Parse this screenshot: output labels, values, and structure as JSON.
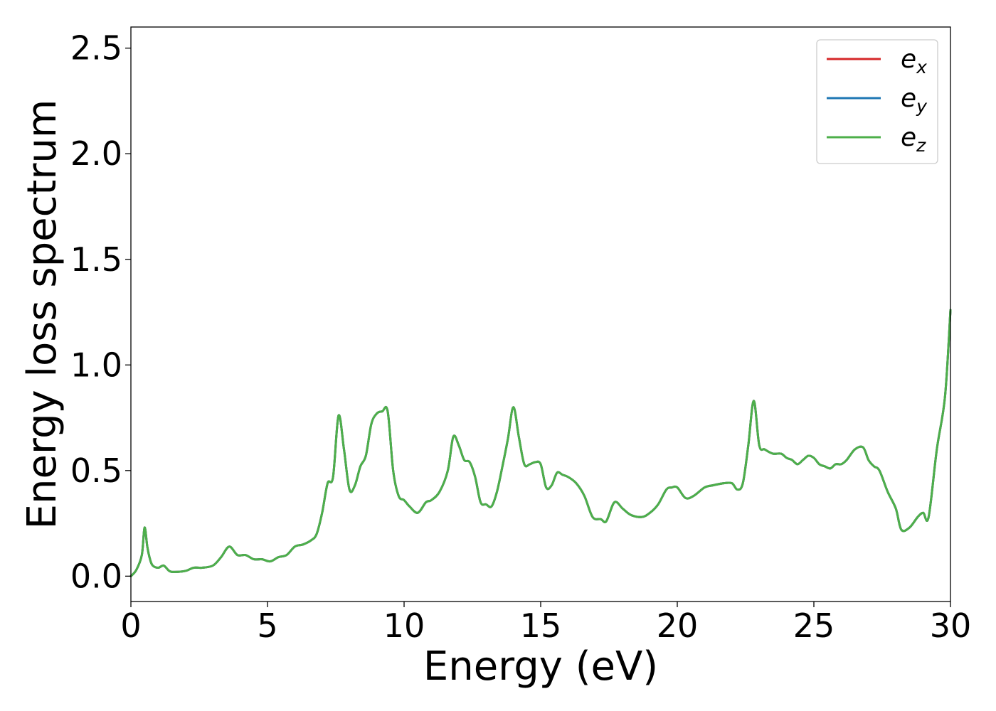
{
  "chart_data": {
    "type": "line",
    "title": "",
    "xlabel": "Energy (eV)",
    "ylabel": "Energy loss spectrum",
    "xlim": [
      0,
      30
    ],
    "ylim": [
      -0.12,
      2.6
    ],
    "xticks": [
      0,
      5,
      10,
      15,
      20,
      25,
      30
    ],
    "xtick_labels": [
      "0",
      "5",
      "10",
      "15",
      "20",
      "25",
      "30"
    ],
    "yticks": [
      0.0,
      0.5,
      1.0,
      1.5,
      2.0,
      2.5
    ],
    "ytick_labels": [
      "0.0",
      "0.5",
      "1.0",
      "1.5",
      "2.0",
      "2.5"
    ],
    "grid": false,
    "legend_position": "top-right",
    "legend": [
      {
        "symbol": "e",
        "subscript": "x",
        "color": "#d62728"
      },
      {
        "symbol": "e",
        "subscript": "y",
        "color": "#1f77b4"
      },
      {
        "symbol": "e",
        "subscript": "z",
        "color": "#4daf4a"
      }
    ],
    "series": [
      {
        "color": "#d62728",
        "x": [
          0,
          0.2,
          0.4,
          0.5,
          0.6,
          0.7,
          0.8,
          1.0,
          1.2,
          1.4,
          1.6,
          2.0,
          2.3,
          2.6,
          3.0,
          3.3,
          3.6,
          3.9,
          4.2,
          4.5,
          4.8,
          5.1,
          5.4,
          5.7,
          6.0,
          6.3,
          6.6,
          6.8,
          7.0,
          7.2,
          7.4,
          7.6,
          7.8,
          8.0,
          8.2,
          8.4,
          8.6,
          8.8,
          9.0,
          9.2,
          9.4,
          9.6,
          9.8,
          10.0,
          10.2,
          10.5,
          10.8,
          11.0,
          11.3,
          11.6,
          11.8,
          12.0,
          12.2,
          12.4,
          12.6,
          12.8,
          13.0,
          13.2,
          13.4,
          13.6,
          13.8,
          14.0,
          14.2,
          14.4,
          14.6,
          14.8,
          15.0,
          15.2,
          15.4,
          15.6,
          15.8,
          16.0,
          16.3,
          16.6,
          16.9,
          17.2,
          17.4,
          17.7,
          18.0,
          18.3,
          18.7,
          19.0,
          19.3,
          19.6,
          19.8,
          20.0,
          20.3,
          20.6,
          21.0,
          21.3,
          21.7,
          22.0,
          22.2,
          22.4,
          22.6,
          22.8,
          23.0,
          23.2,
          23.5,
          23.8,
          24.0,
          24.2,
          24.4,
          24.6,
          24.8,
          25.0,
          25.2,
          25.4,
          25.6,
          25.8,
          26.0,
          26.2,
          26.5,
          26.8,
          27.0,
          27.2,
          27.4,
          27.7,
          28.0,
          28.2,
          28.5,
          28.8,
          29.0,
          29.2,
          29.5,
          29.8,
          30.0
        ],
        "y": [
          0.0,
          0.03,
          0.1,
          0.23,
          0.14,
          0.08,
          0.05,
          0.04,
          0.05,
          0.025,
          0.02,
          0.025,
          0.04,
          0.04,
          0.05,
          0.09,
          0.14,
          0.1,
          0.1,
          0.08,
          0.08,
          0.07,
          0.09,
          0.1,
          0.14,
          0.15,
          0.17,
          0.2,
          0.3,
          0.44,
          0.47,
          0.76,
          0.6,
          0.41,
          0.43,
          0.52,
          0.57,
          0.72,
          0.77,
          0.78,
          0.78,
          0.5,
          0.38,
          0.36,
          0.33,
          0.3,
          0.35,
          0.36,
          0.4,
          0.5,
          0.66,
          0.62,
          0.55,
          0.54,
          0.47,
          0.35,
          0.34,
          0.33,
          0.4,
          0.52,
          0.65,
          0.8,
          0.66,
          0.53,
          0.53,
          0.54,
          0.53,
          0.42,
          0.43,
          0.49,
          0.48,
          0.47,
          0.44,
          0.38,
          0.28,
          0.27,
          0.26,
          0.35,
          0.32,
          0.29,
          0.28,
          0.3,
          0.34,
          0.41,
          0.42,
          0.42,
          0.37,
          0.38,
          0.42,
          0.43,
          0.44,
          0.44,
          0.41,
          0.44,
          0.62,
          0.83,
          0.62,
          0.6,
          0.58,
          0.58,
          0.56,
          0.55,
          0.53,
          0.55,
          0.57,
          0.56,
          0.53,
          0.52,
          0.51,
          0.53,
          0.53,
          0.55,
          0.6,
          0.61,
          0.55,
          0.52,
          0.5,
          0.4,
          0.32,
          0.22,
          0.23,
          0.28,
          0.3,
          0.28,
          0.6,
          0.85,
          1.26
        ]
      },
      {
        "color": "#1f77b4",
        "x": [
          0,
          0.2,
          0.4,
          0.5,
          0.6,
          0.7,
          0.8,
          1.0,
          1.2,
          1.4,
          1.6,
          2.0,
          2.3,
          2.6,
          3.0,
          3.3,
          3.6,
          3.9,
          4.2,
          4.5,
          4.8,
          5.1,
          5.4,
          5.7,
          6.0,
          6.3,
          6.6,
          6.8,
          7.0,
          7.2,
          7.4,
          7.6,
          7.8,
          8.0,
          8.2,
          8.4,
          8.6,
          8.8,
          9.0,
          9.2,
          9.4,
          9.6,
          9.8,
          10.0,
          10.2,
          10.5,
          10.8,
          11.0,
          11.3,
          11.6,
          11.8,
          12.0,
          12.2,
          12.4,
          12.6,
          12.8,
          13.0,
          13.2,
          13.4,
          13.6,
          13.8,
          14.0,
          14.2,
          14.4,
          14.6,
          14.8,
          15.0,
          15.2,
          15.4,
          15.6,
          15.8,
          16.0,
          16.3,
          16.6,
          16.9,
          17.2,
          17.4,
          17.7,
          18.0,
          18.3,
          18.7,
          19.0,
          19.3,
          19.6,
          19.8,
          20.0,
          20.3,
          20.6,
          21.0,
          21.3,
          21.7,
          22.0,
          22.2,
          22.4,
          22.6,
          22.8,
          23.0,
          23.2,
          23.5,
          23.8,
          24.0,
          24.2,
          24.4,
          24.6,
          24.8,
          25.0,
          25.2,
          25.4,
          25.6,
          25.8,
          26.0,
          26.2,
          26.5,
          26.8,
          27.0,
          27.2,
          27.4,
          27.7,
          28.0,
          28.2,
          28.5,
          28.8,
          29.0,
          29.2,
          29.5,
          29.8,
          30.0
        ],
        "y": [
          0.0,
          0.03,
          0.1,
          0.23,
          0.14,
          0.08,
          0.05,
          0.04,
          0.05,
          0.025,
          0.02,
          0.025,
          0.04,
          0.04,
          0.05,
          0.09,
          0.14,
          0.1,
          0.1,
          0.08,
          0.08,
          0.07,
          0.09,
          0.1,
          0.14,
          0.15,
          0.17,
          0.2,
          0.3,
          0.44,
          0.47,
          0.76,
          0.6,
          0.41,
          0.43,
          0.52,
          0.57,
          0.72,
          0.77,
          0.78,
          0.78,
          0.5,
          0.38,
          0.36,
          0.33,
          0.3,
          0.35,
          0.36,
          0.4,
          0.5,
          0.66,
          0.62,
          0.55,
          0.54,
          0.47,
          0.35,
          0.34,
          0.33,
          0.4,
          0.52,
          0.65,
          0.8,
          0.66,
          0.53,
          0.53,
          0.54,
          0.53,
          0.42,
          0.43,
          0.49,
          0.48,
          0.47,
          0.44,
          0.38,
          0.28,
          0.27,
          0.26,
          0.35,
          0.32,
          0.29,
          0.28,
          0.3,
          0.34,
          0.41,
          0.42,
          0.42,
          0.37,
          0.38,
          0.42,
          0.43,
          0.44,
          0.44,
          0.41,
          0.44,
          0.62,
          0.83,
          0.62,
          0.6,
          0.58,
          0.58,
          0.56,
          0.55,
          0.53,
          0.55,
          0.57,
          0.56,
          0.53,
          0.52,
          0.51,
          0.53,
          0.53,
          0.55,
          0.6,
          0.61,
          0.55,
          0.52,
          0.5,
          0.4,
          0.32,
          0.22,
          0.23,
          0.28,
          0.3,
          0.28,
          0.6,
          0.85,
          1.26
        ]
      },
      {
        "color": "#4daf4a",
        "x": [
          0,
          0.2,
          0.4,
          0.5,
          0.6,
          0.7,
          0.8,
          1.0,
          1.2,
          1.4,
          1.6,
          2.0,
          2.3,
          2.6,
          3.0,
          3.3,
          3.6,
          3.9,
          4.2,
          4.5,
          4.8,
          5.1,
          5.4,
          5.7,
          6.0,
          6.3,
          6.6,
          6.8,
          7.0,
          7.2,
          7.4,
          7.6,
          7.8,
          8.0,
          8.2,
          8.4,
          8.6,
          8.8,
          9.0,
          9.2,
          9.4,
          9.6,
          9.8,
          10.0,
          10.2,
          10.5,
          10.8,
          11.0,
          11.3,
          11.6,
          11.8,
          12.0,
          12.2,
          12.4,
          12.6,
          12.8,
          13.0,
          13.2,
          13.4,
          13.6,
          13.8,
          14.0,
          14.2,
          14.4,
          14.6,
          14.8,
          15.0,
          15.2,
          15.4,
          15.6,
          15.8,
          16.0,
          16.3,
          16.6,
          16.9,
          17.2,
          17.4,
          17.7,
          18.0,
          18.3,
          18.7,
          19.0,
          19.3,
          19.6,
          19.8,
          20.0,
          20.3,
          20.6,
          21.0,
          21.3,
          21.7,
          22.0,
          22.2,
          22.4,
          22.6,
          22.8,
          23.0,
          23.2,
          23.5,
          23.8,
          24.0,
          24.2,
          24.4,
          24.6,
          24.8,
          25.0,
          25.2,
          25.4,
          25.6,
          25.8,
          26.0,
          26.2,
          26.5,
          26.8,
          27.0,
          27.2,
          27.4,
          27.7,
          28.0,
          28.2,
          28.5,
          28.8,
          29.0,
          29.2,
          29.5,
          29.8,
          30.0
        ],
        "y": [
          0.0,
          0.03,
          0.1,
          0.23,
          0.14,
          0.08,
          0.05,
          0.04,
          0.05,
          0.025,
          0.02,
          0.025,
          0.04,
          0.04,
          0.05,
          0.09,
          0.14,
          0.1,
          0.1,
          0.08,
          0.08,
          0.07,
          0.09,
          0.1,
          0.14,
          0.15,
          0.17,
          0.2,
          0.3,
          0.44,
          0.47,
          0.76,
          0.6,
          0.41,
          0.43,
          0.52,
          0.57,
          0.72,
          0.77,
          0.78,
          0.78,
          0.5,
          0.38,
          0.36,
          0.33,
          0.3,
          0.35,
          0.36,
          0.4,
          0.5,
          0.66,
          0.62,
          0.55,
          0.54,
          0.47,
          0.35,
          0.34,
          0.33,
          0.4,
          0.52,
          0.65,
          0.8,
          0.66,
          0.53,
          0.53,
          0.54,
          0.53,
          0.42,
          0.43,
          0.49,
          0.48,
          0.47,
          0.44,
          0.38,
          0.28,
          0.27,
          0.26,
          0.35,
          0.32,
          0.29,
          0.28,
          0.3,
          0.34,
          0.41,
          0.42,
          0.42,
          0.37,
          0.38,
          0.42,
          0.43,
          0.44,
          0.44,
          0.41,
          0.44,
          0.62,
          0.83,
          0.62,
          0.6,
          0.58,
          0.58,
          0.56,
          0.55,
          0.53,
          0.55,
          0.57,
          0.56,
          0.53,
          0.52,
          0.51,
          0.53,
          0.53,
          0.55,
          0.6,
          0.61,
          0.55,
          0.52,
          0.5,
          0.4,
          0.32,
          0.22,
          0.23,
          0.28,
          0.3,
          0.28,
          0.6,
          0.85,
          1.26
        ]
      }
    ]
  }
}
